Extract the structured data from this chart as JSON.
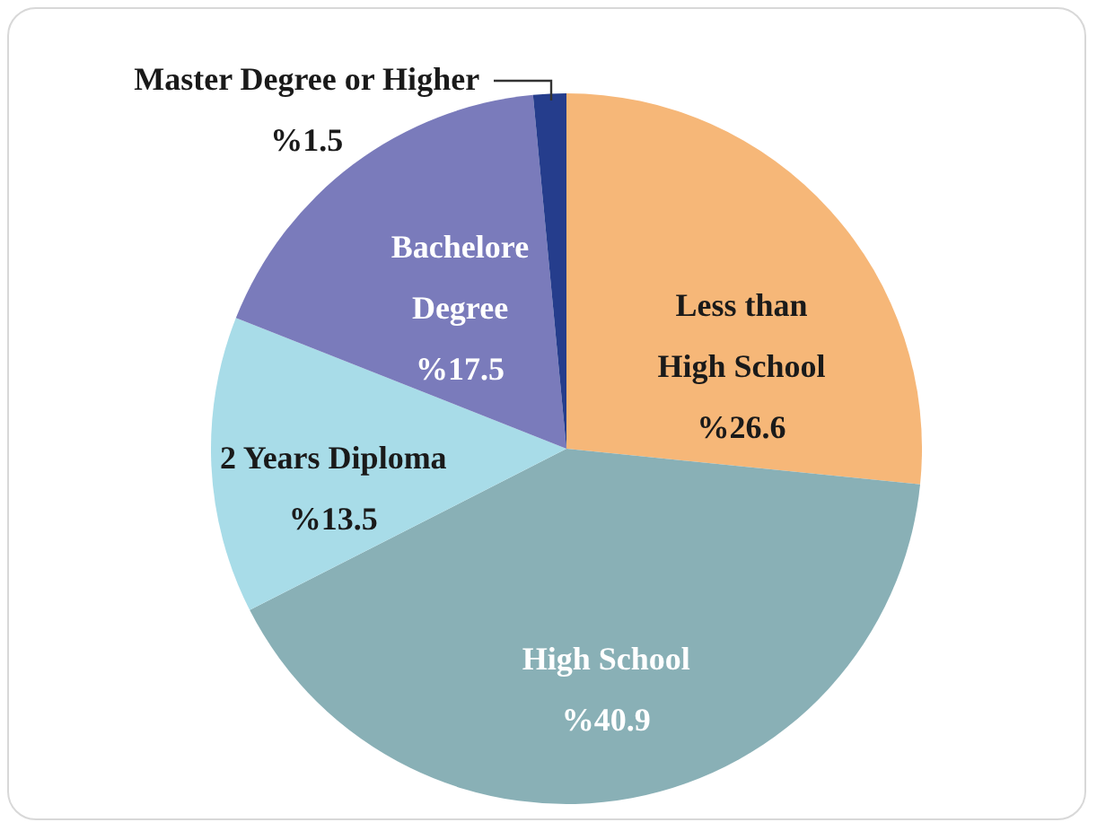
{
  "chart_data": {
    "type": "pie",
    "categories": [
      "Less than High School",
      "High School",
      "2 Years Diploma",
      "Bachelore Degree",
      "Master Degree or Higher"
    ],
    "values": [
      26.6,
      40.9,
      13.5,
      17.5,
      1.5
    ],
    "value_labels": [
      "%26.6",
      "%40.9",
      "%13.5",
      "%17.5",
      "%1.5"
    ],
    "colors": [
      "#f6b778",
      "#89b0b6",
      "#a8dce8",
      "#7a7bbb",
      "#253d8c"
    ]
  }
}
